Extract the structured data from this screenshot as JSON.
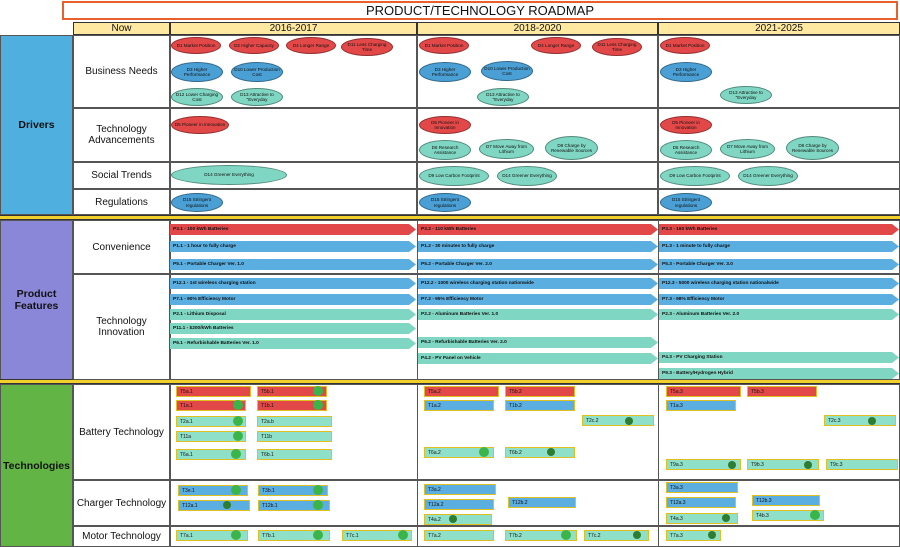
{
  "title": "PRODUCT/TECHNOLOGY ROADMAP",
  "columns": [
    "Now",
    "2016-2017",
    "2018-2020",
    "2021-2025"
  ],
  "categories": {
    "drivers": "Drivers",
    "features": "Product Features",
    "technologies": "Technologies"
  },
  "subcategories": {
    "business": "Business Needs",
    "techadv": "Technology Advancements",
    "social": "Social Trends",
    "regulations": "Regulations",
    "convenience": "Convenience",
    "techinno": "Technology Innovation",
    "battery": "Battery Technology",
    "charger": "Charger Technology",
    "motor": "Motor Technology"
  },
  "drivers": {
    "d01": "D1 Market Position",
    "d02": "D2 Higher Capacity",
    "d04": "D4 Longer Range",
    "d11": "D11 Less Charging Time",
    "d03": "D3 Higher Performance",
    "d10": "D10 Lower Production Cost",
    "d12": "D12 Lower Charging Cost",
    "d13": "D13 Attractive to \"Everyday",
    "d05": "D5 Pioneer in Innovation",
    "d06": "D6 Research Assistance",
    "d07": "D7 Move Away from Lithium",
    "d08": "D8 Charge by Renewable Sources",
    "d14": "D14 Greener Everything",
    "d09": "D9 Low Carbon Footprint",
    "d15": "D15 Stringent regulations"
  },
  "features": {
    "p31": "P3.1 - 100 kWh Batteries",
    "p32": "P3.2 - 110 kWh Batteries",
    "p33": "P3.3 - 160 kWh Batteries",
    "p11": "P1.1 - 1 hour to fully charge",
    "p12": "P1.2 - 30 minutes to fully charge",
    "p13": "P1.3 - 1 minute to fully charge",
    "p51": "P5.1 - Portable Charger Ver. 1.0",
    "p52": "P5.2 - Portable Charger Ver. 2.0",
    "p53": "P5.3 - Portable Charger Ver. 3.0",
    "p121": "P12.1 - 1st wireless charging station",
    "p122": "P12.2 - 1000 wireless charging station nationwide",
    "p123": "P12.3 - 5000 wireless charging station nationalwide",
    "p71": "P7.1 - 90% Efficiency Motor",
    "p72": "P7.2 - 95% Efficiency Motor",
    "p73": "P7.3 - 98% Efficiency Motor",
    "p21": "P2.1 - Lithium Disposal",
    "p22": "P2.2 - Aluminum Batteries Ver. 1.0",
    "p23": "P2.3 - Aluminum Batteries Ver. 2.0",
    "p111": "P11.1 - $200/kWh Batteries",
    "p61": "P6.1 - Refurbishable Batteries Ver. 1.0",
    "p62": "P6.2 - Refurbishable Batteries Ver. 2.0",
    "p42": "P4.2 - PV Panel on Vehicle",
    "p43": "P4.3 - PV Charging Station",
    "p93": "P9.3 - Battery/Hydrogen Hybrid"
  },
  "techs": {
    "t5a1": "T5a.1",
    "t5b1": "T5b.1",
    "t1a1": "T1a.1",
    "t1b1": "T1b.1",
    "t2a1": "T2a.1",
    "t2ab": "T2a.b",
    "t11a": "T11a",
    "t11b": "T11b",
    "t6a1": "T6a.1",
    "t6b1": "T6b.1",
    "t5a2": "T5a.2",
    "t5b2": "T5b.2",
    "t1a2": "T1a.2",
    "t1b2": "T1b.2",
    "t2c2": "T2c.2",
    "t6a2": "T6a.2",
    "t6b2": "T6b.2",
    "t5a3": "T5a.3",
    "t5b3": "T5b.3",
    "t1a3": "T1a.3",
    "t2c3": "T2c.3",
    "t9a3": "T9a.3",
    "t9b3": "T9b.3",
    "t9c3": "T9c.3",
    "t3e1": "T3e.1",
    "t3b1": "T3b.1",
    "t12a1": "T12a.1",
    "t12b1": "T12b.1",
    "t3a2": "T3a.2",
    "t12a2": "T12a.2",
    "t12b2": "T12b.2",
    "t4a2": "T4a.2",
    "t3a3": "T3a.3",
    "t12a3": "T12a.3",
    "t12b3": "T12b.3",
    "t4a3": "T4a.3",
    "t4b3": "T4b.3",
    "t7a1": "T7a.1",
    "t7b1": "T7b.1",
    "t7c1": "T7c.1",
    "t7a2": "T7a.2",
    "t7b2": "T7b.2",
    "t7c2": "T7c.2",
    "t7a3": "T7a.3"
  },
  "colors": {
    "red": "#e34848",
    "blue": "#4a9fd4",
    "teal": "#7fd6c2",
    "drivers_bg": "#4fb0e0",
    "features_bg": "#8a86d8",
    "tech_bg": "#62b545",
    "separator": "#f2d02b",
    "title_border": "#e8602c"
  }
}
